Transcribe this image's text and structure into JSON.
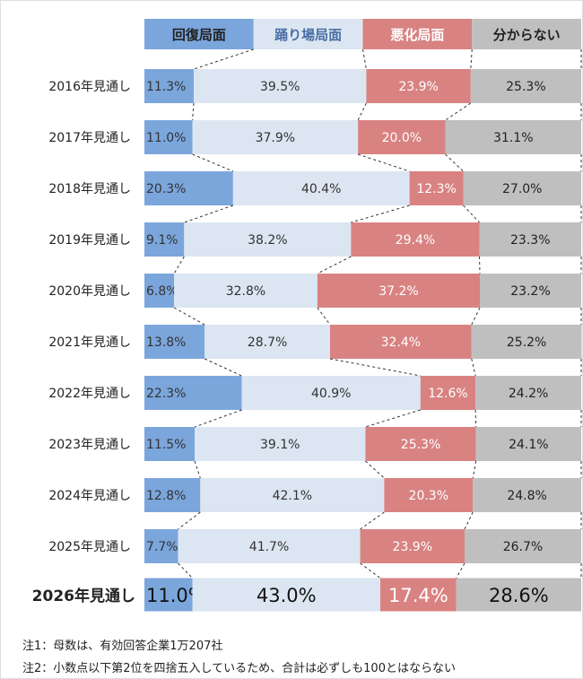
{
  "chart_data": {
    "type": "bar",
    "stacked": true,
    "orientation": "horizontal",
    "categories": [
      "2016年見通し",
      "2017年見通し",
      "2018年見通し",
      "2019年見通し",
      "2020年見通し",
      "2021年見通し",
      "2022年見通し",
      "2023年見通し",
      "2024年見通し",
      "2025年見通し",
      "2026年見通し"
    ],
    "series": [
      {
        "name": "回復局面",
        "color": "#7ba6dc",
        "label_color": "#333333",
        "values": [
          11.3,
          11.0,
          20.3,
          9.1,
          6.8,
          13.8,
          22.3,
          11.5,
          12.8,
          7.7,
          11.0
        ]
      },
      {
        "name": "踊り場局面",
        "color": "#dce6f2",
        "label_color": "#333333",
        "header_text_color": "#4a6fa5",
        "values": [
          39.5,
          37.9,
          40.4,
          38.2,
          32.8,
          28.7,
          40.9,
          39.1,
          42.1,
          41.7,
          43.0
        ]
      },
      {
        "name": "悪化局面",
        "color": "#d98282",
        "label_color": "#ffffff",
        "values": [
          23.9,
          20.0,
          12.3,
          29.4,
          37.2,
          32.4,
          12.6,
          25.3,
          20.3,
          23.9,
          17.4
        ]
      },
      {
        "name": "分からない",
        "color": "#bfbfbf",
        "label_color": "#222222",
        "values": [
          25.3,
          31.1,
          27.0,
          23.3,
          23.2,
          25.2,
          24.2,
          24.1,
          24.8,
          26.7,
          28.6
        ]
      }
    ],
    "value_format": "%",
    "legend": "top",
    "connectors": "dashed"
  },
  "notes": [
    "注1：母数は、有効回答企業1万207社",
    "注2：小数点以下第2位を四捨五入しているため、合計は必ずしも100とはならない"
  ]
}
